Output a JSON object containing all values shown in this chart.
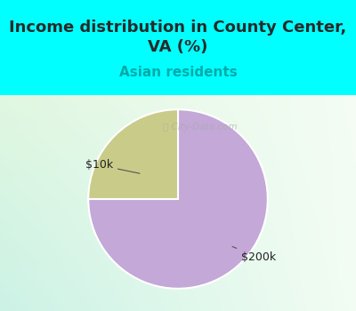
{
  "title": "Income distribution in County Center,\nVA (%)",
  "subtitle": "Asian residents",
  "slices": [
    75.0,
    25.0
  ],
  "slice_labels": [
    "$200k",
    "$10k"
  ],
  "colors": [
    "#C3A8D8",
    "#C9CC88"
  ],
  "bg_color_top": "#00FFFF",
  "title_color": "#2a2a2a",
  "subtitle_color": "#00AAAA",
  "label_color": "#222222",
  "watermark_color": "#aaaaaa",
  "start_angle": 90,
  "title_fontsize": 13,
  "subtitle_fontsize": 11,
  "label_fontsize": 9,
  "counterclock": false,
  "gradient_topleft": [
    0.88,
    0.97,
    0.88
  ],
  "gradient_topright": [
    0.96,
    0.99,
    0.96
  ],
  "gradient_bottomleft": [
    0.8,
    0.95,
    0.9
  ],
  "gradient_bottomright": [
    0.95,
    0.99,
    0.95
  ]
}
